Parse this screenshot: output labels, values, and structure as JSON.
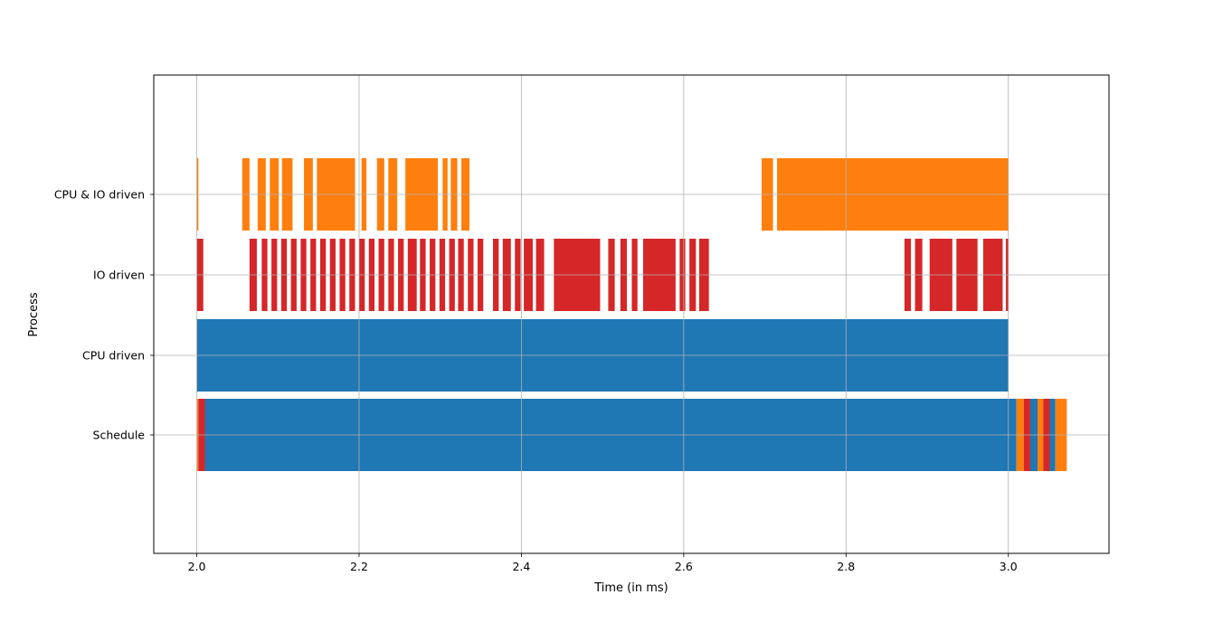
{
  "chart_data": {
    "type": "gantt",
    "title": "",
    "xlabel": "Time (in ms)",
    "ylabel": "Process",
    "xlim": [
      1.947,
      3.124
    ],
    "xticks": [
      2.0,
      2.2,
      2.4,
      2.6,
      2.8,
      3.0
    ],
    "xtick_labels": [
      "2.0",
      "2.2",
      "2.4",
      "2.6",
      "2.8",
      "3.0"
    ],
    "grid": true,
    "categories": [
      "Schedule",
      "CPU driven",
      "IO driven",
      "CPU & IO driven"
    ],
    "colors": {
      "cpu": "#1f77b4",
      "io": "#d62728",
      "cpuio": "#ff7f0e",
      "grid": "#b0b0b0"
    },
    "series": [
      {
        "row": "CPU & IO driven",
        "color": "#ff7f0e",
        "intervals": [
          [
            2.0,
            2.002
          ],
          [
            2.056,
            2.065
          ],
          [
            2.075,
            2.085
          ],
          [
            2.09,
            2.101
          ],
          [
            2.105,
            2.118
          ],
          [
            2.132,
            2.143
          ],
          [
            2.148,
            2.195
          ],
          [
            2.203,
            2.209
          ],
          [
            2.222,
            2.231
          ],
          [
            2.236,
            2.247
          ],
          [
            2.257,
            2.297
          ],
          [
            2.303,
            2.309
          ],
          [
            2.313,
            2.321
          ],
          [
            2.326,
            2.336
          ],
          [
            2.696,
            2.71
          ],
          [
            2.715,
            3.0
          ]
        ]
      },
      {
        "row": "IO driven",
        "color": "#d62728",
        "intervals": [
          [
            2.0,
            2.008
          ],
          [
            2.065,
            2.074
          ],
          [
            2.08,
            2.087
          ],
          [
            2.092,
            2.099
          ],
          [
            2.104,
            2.111
          ],
          [
            2.116,
            2.123
          ],
          [
            2.128,
            2.135
          ],
          [
            2.14,
            2.147
          ],
          [
            2.152,
            2.159
          ],
          [
            2.164,
            2.171
          ],
          [
            2.176,
            2.183
          ],
          [
            2.188,
            2.195
          ],
          [
            2.2,
            2.207
          ],
          [
            2.212,
            2.219
          ],
          [
            2.224,
            2.231
          ],
          [
            2.236,
            2.243
          ],
          [
            2.248,
            2.255
          ],
          [
            2.26,
            2.271
          ],
          [
            2.275,
            2.282
          ],
          [
            2.287,
            2.294
          ],
          [
            2.299,
            2.306
          ],
          [
            2.311,
            2.318
          ],
          [
            2.322,
            2.329
          ],
          [
            2.334,
            2.341
          ],
          [
            2.346,
            2.353
          ],
          [
            2.365,
            2.372
          ],
          [
            2.377,
            2.387
          ],
          [
            2.392,
            2.399
          ],
          [
            2.403,
            2.414
          ],
          [
            2.418,
            2.428
          ],
          [
            2.44,
            2.497
          ],
          [
            2.507,
            2.515
          ],
          [
            2.522,
            2.53
          ],
          [
            2.536,
            2.543
          ],
          [
            2.55,
            2.59
          ],
          [
            2.595,
            2.602
          ],
          [
            2.607,
            2.615
          ],
          [
            2.619,
            2.631
          ],
          [
            2.872,
            2.88
          ],
          [
            2.885,
            2.894
          ],
          [
            2.903,
            2.931
          ],
          [
            2.936,
            2.962
          ],
          [
            2.969,
            2.993
          ],
          [
            2.997,
            3.0
          ]
        ]
      },
      {
        "row": "CPU driven",
        "color": "#1f77b4",
        "intervals": [
          [
            2.0,
            3.0
          ]
        ]
      },
      {
        "row": "Schedule",
        "segments": [
          {
            "start": 2.0,
            "end": 2.002,
            "color": "#ff7f0e"
          },
          {
            "start": 2.002,
            "end": 2.01,
            "color": "#d62728"
          },
          {
            "start": 2.01,
            "end": 3.01,
            "color": "#1f77b4"
          },
          {
            "start": 3.01,
            "end": 3.019,
            "color": "#ff7f0e"
          },
          {
            "start": 3.019,
            "end": 3.027,
            "color": "#d62728"
          },
          {
            "start": 3.027,
            "end": 3.036,
            "color": "#1f77b4"
          },
          {
            "start": 3.036,
            "end": 3.043,
            "color": "#ff7f0e"
          },
          {
            "start": 3.043,
            "end": 3.051,
            "color": "#d62728"
          },
          {
            "start": 3.051,
            "end": 3.058,
            "color": "#1f77b4"
          },
          {
            "start": 3.058,
            "end": 3.065,
            "color": "#ff7f0e"
          },
          {
            "start": 3.065,
            "end": 3.072,
            "color": "#ff7f0e"
          }
        ]
      }
    ]
  }
}
